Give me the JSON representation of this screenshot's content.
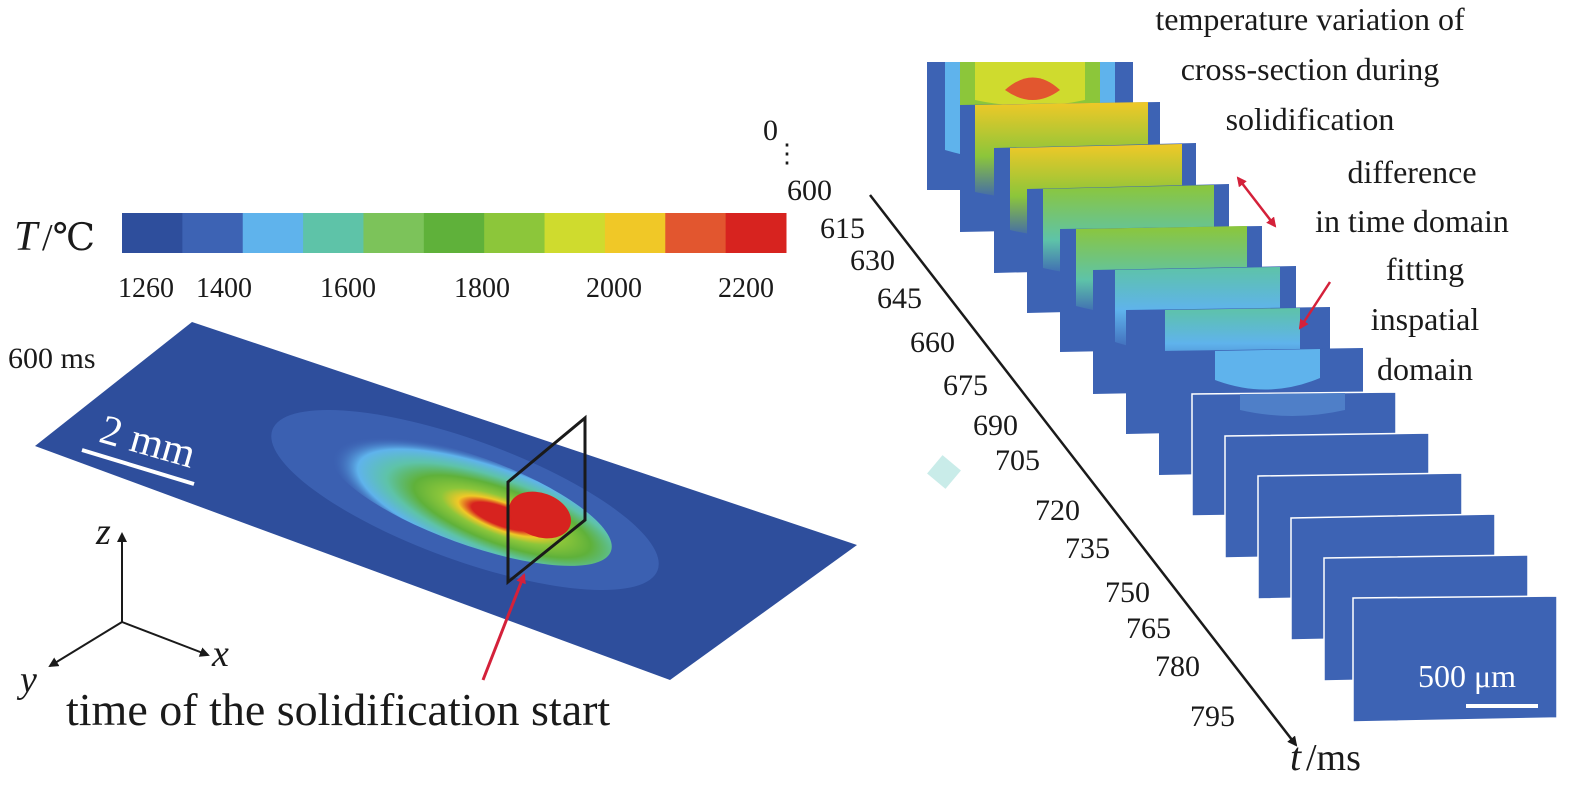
{
  "colorbar": {
    "label_symbol": "T",
    "label_unit": "/℃",
    "colors": [
      "#2e4e9c",
      "#3d63b4",
      "#5fb3ec",
      "#5ec3a8",
      "#7cc35a",
      "#5fb13a",
      "#8cc63a",
      "#cfdb2e",
      "#f0c827",
      "#e2562f",
      "#d7231f"
    ],
    "ticks": [
      "1260",
      "1400",
      "1600",
      "1800",
      "2000",
      "2200"
    ]
  },
  "left_panel": {
    "time_label": "600 ms",
    "scale_bar_label": "2 mm",
    "axis_labels": {
      "z": "z",
      "x": "x",
      "y": "y"
    },
    "annotation": "time of the solidification start"
  },
  "right_panel": {
    "time_ticks": [
      "0",
      "⋮",
      "600",
      "615",
      "630",
      "645",
      "660",
      "675",
      "690",
      "705",
      "720",
      "735",
      "750",
      "765",
      "780",
      "795"
    ],
    "time_axis_symbol": "t",
    "time_axis_unit": "/ms",
    "scale_bar_label": "500 μm",
    "annotations": {
      "title_lines": [
        "temperature variation of",
        "cross-section during",
        "solidification"
      ],
      "time_diff_lines": [
        "difference",
        "in time domain"
      ],
      "spatial_fit_lines": [
        "fitting",
        "inspatial",
        "domain"
      ]
    }
  },
  "colors": {
    "pointer": "#d4213a",
    "substrate": "#2e4e9c",
    "text": "#1a1a1a"
  }
}
